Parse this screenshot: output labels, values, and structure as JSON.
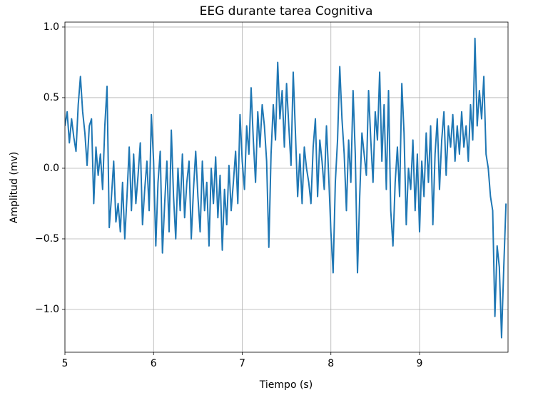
{
  "chart_data": {
    "type": "line",
    "title": "EEG durante tarea Cognitiva",
    "xlabel": "Tiempo (s)",
    "ylabel": "Amplitud (mv)",
    "color": "#1f77b4",
    "grid": true,
    "xlim": [
      5,
      9.998
    ],
    "ylim": [
      -1.303,
      1.035
    ],
    "xticks": [
      5,
      6,
      7,
      8,
      9
    ],
    "yticks": [
      {
        "value": -1,
        "label": "−1.0"
      },
      {
        "value": -0.5,
        "label": "−0.5"
      },
      {
        "value": 0,
        "label": "0.0"
      },
      {
        "value": 0.5,
        "label": "0.5"
      },
      {
        "value": 1,
        "label": "1.0"
      }
    ],
    "x": [
      5,
      5.025,
      5.05,
      5.075,
      5.1,
      5.125,
      5.15,
      5.175,
      5.2,
      5.225,
      5.25,
      5.275,
      5.3,
      5.325,
      5.35,
      5.375,
      5.4,
      5.425,
      5.45,
      5.475,
      5.5,
      5.525,
      5.55,
      5.575,
      5.6,
      5.625,
      5.65,
      5.675,
      5.7,
      5.725,
      5.75,
      5.775,
      5.8,
      5.825,
      5.85,
      5.875,
      5.9,
      5.925,
      5.95,
      5.975,
      6,
      6.025,
      6.05,
      6.075,
      6.1,
      6.125,
      6.15,
      6.175,
      6.2,
      6.225,
      6.25,
      6.275,
      6.3,
      6.325,
      6.35,
      6.375,
      6.4,
      6.425,
      6.45,
      6.475,
      6.5,
      6.525,
      6.55,
      6.575,
      6.6,
      6.625,
      6.65,
      6.675,
      6.7,
      6.725,
      6.75,
      6.775,
      6.8,
      6.825,
      6.85,
      6.875,
      6.9,
      6.925,
      6.95,
      6.975,
      7,
      7.025,
      7.05,
      7.075,
      7.1,
      7.125,
      7.15,
      7.175,
      7.2,
      7.225,
      7.25,
      7.275,
      7.3,
      7.325,
      7.35,
      7.375,
      7.4,
      7.425,
      7.45,
      7.475,
      7.5,
      7.525,
      7.55,
      7.575,
      7.6,
      7.625,
      7.65,
      7.675,
      7.7,
      7.725,
      7.75,
      7.775,
      7.8,
      7.825,
      7.85,
      7.875,
      7.9,
      7.925,
      7.95,
      7.975,
      8,
      8.025,
      8.05,
      8.075,
      8.1,
      8.125,
      8.15,
      8.175,
      8.2,
      8.225,
      8.25,
      8.275,
      8.3,
      8.325,
      8.35,
      8.375,
      8.4,
      8.425,
      8.45,
      8.475,
      8.5,
      8.525,
      8.55,
      8.575,
      8.6,
      8.625,
      8.65,
      8.675,
      8.7,
      8.725,
      8.75,
      8.775,
      8.8,
      8.825,
      8.85,
      8.875,
      8.9,
      8.925,
      8.95,
      8.975,
      9,
      9.025,
      9.05,
      9.075,
      9.1,
      9.125,
      9.15,
      9.175,
      9.2,
      9.225,
      9.25,
      9.275,
      9.3,
      9.325,
      9.35,
      9.375,
      9.4,
      9.425,
      9.45,
      9.475,
      9.5,
      9.525,
      9.55,
      9.575,
      9.6,
      9.625,
      9.65,
      9.675,
      9.7,
      9.725,
      9.75,
      9.775,
      9.8,
      9.825,
      9.85,
      9.875,
      9.9,
      9.925,
      9.95,
      9.975
    ],
    "values": [
      0.3,
      0.4,
      0.18,
      0.35,
      0.22,
      0.12,
      0.45,
      0.65,
      0.4,
      0.25,
      0.02,
      0.3,
      0.35,
      -0.25,
      0.15,
      -0.05,
      0.1,
      -0.15,
      0.3,
      0.58,
      -0.42,
      -0.2,
      0.05,
      -0.38,
      -0.25,
      -0.45,
      -0.1,
      -0.5,
      -0.2,
      0.15,
      -0.3,
      0.1,
      -0.25,
      -0.05,
      0.18,
      -0.4,
      -0.15,
      0.05,
      -0.3,
      0.38,
      0.05,
      -0.55,
      -0.1,
      0.12,
      -0.6,
      -0.25,
      0.05,
      -0.45,
      0.27,
      -0.2,
      -0.5,
      0.0,
      -0.3,
      0.1,
      -0.35,
      -0.1,
      0.05,
      -0.5,
      -0.15,
      0.12,
      -0.2,
      -0.45,
      0.05,
      -0.3,
      -0.1,
      -0.55,
      0.0,
      -0.25,
      0.08,
      -0.35,
      -0.05,
      -0.58,
      -0.15,
      -0.4,
      0.02,
      -0.3,
      -0.1,
      0.12,
      -0.25,
      0.38,
      0.05,
      -0.15,
      0.3,
      0.1,
      0.57,
      0.2,
      -0.1,
      0.4,
      0.15,
      0.45,
      0.3,
      0.05,
      -0.56,
      0.1,
      0.45,
      0.2,
      0.75,
      0.35,
      0.55,
      0.15,
      0.6,
      0.3,
      0.02,
      0.68,
      0.25,
      -0.2,
      0.1,
      -0.25,
      0.15,
      0.0,
      -0.1,
      -0.25,
      0.15,
      0.35,
      -0.2,
      0.2,
      0.05,
      -0.15,
      0.3,
      -0.05,
      -0.45,
      -0.74,
      -0.1,
      0.2,
      0.72,
      0.35,
      0.1,
      -0.3,
      0.2,
      -0.1,
      0.55,
      0.1,
      -0.74,
      -0.2,
      0.25,
      0.1,
      -0.05,
      0.55,
      0.2,
      -0.1,
      0.4,
      0.2,
      0.68,
      0.05,
      0.45,
      -0.15,
      0.55,
      -0.3,
      -0.55,
      -0.1,
      0.15,
      -0.2,
      0.6,
      0.25,
      -0.4,
      0.0,
      -0.15,
      0.2,
      -0.3,
      0.1,
      -0.45,
      0.05,
      -0.2,
      0.25,
      -0.1,
      0.3,
      -0.4,
      0.1,
      0.35,
      -0.15,
      0.2,
      0.4,
      -0.05,
      0.3,
      0.15,
      0.38,
      0.05,
      0.3,
      0.1,
      0.4,
      0.15,
      0.3,
      0.05,
      0.45,
      0.2,
      0.92,
      0.3,
      0.55,
      0.35,
      0.65,
      0.1,
      0.0,
      -0.2,
      -0.3,
      -1.05,
      -0.55,
      -0.7,
      -1.2,
      -0.7,
      -0.25
    ]
  }
}
